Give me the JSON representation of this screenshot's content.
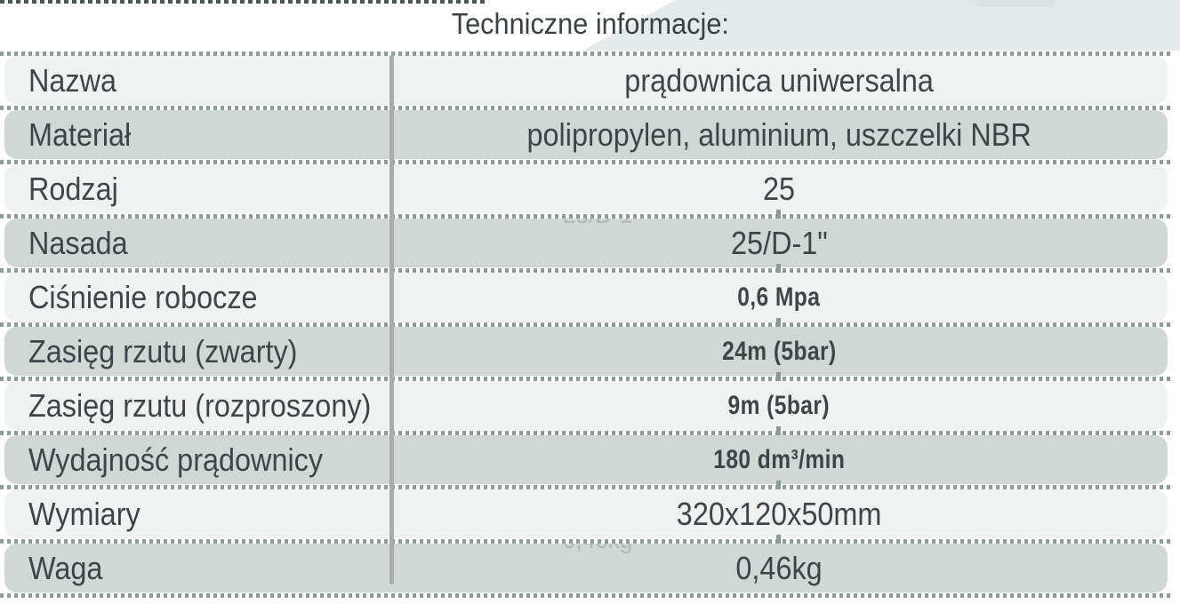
{
  "title": "Techniczne informacje:",
  "colors": {
    "row-light": "#f0f2f1",
    "row-dark": "#d1d7d4",
    "dots": "#8e9d99",
    "divider": "#a3afac",
    "text": "#3e4549",
    "title-shade": "#e4eae9",
    "tick": "#8b9a96"
  },
  "table": {
    "columns": [
      "label",
      "value"
    ],
    "rows": [
      {
        "label": "Nazwa",
        "value": "prądownica uniwersalna",
        "shade": "light",
        "value_style": "regular"
      },
      {
        "label": "Materiał",
        "value": "polipropylen, aluminium, uszczelki NBR",
        "shade": "dark",
        "value_style": "regular"
      },
      {
        "label": "Rodzaj",
        "value": "25",
        "shade": "light",
        "value_style": "regular"
      },
      {
        "label": "Nasada",
        "value": "25/D-1\"",
        "shade": "dark",
        "value_style": "regular",
        "ghost": "25/D-1\""
      },
      {
        "label": "Ciśnienie robocze",
        "value": "0,6 Mpa",
        "shade": "light",
        "value_style": "bold"
      },
      {
        "label": "Zasięg rzutu (zwarty)",
        "value": "24m (5bar)",
        "shade": "dark",
        "value_style": "bold"
      },
      {
        "label": "Zasięg rzutu (rozproszony)",
        "value": "9m (5bar)",
        "shade": "light",
        "value_style": "bold"
      },
      {
        "label": "Wydajność prądownicy",
        "value": "180 dm³/min",
        "shade": "dark",
        "value_style": "bold"
      },
      {
        "label": "Wymiary",
        "value": "320x120x50mm",
        "shade": "light",
        "value_style": "regular"
      },
      {
        "label": "Waga",
        "value": "0,46kg",
        "shade": "dark",
        "value_style": "regular",
        "ghost": "0,46kg"
      }
    ],
    "separator_ticks": [
      3,
      4,
      5,
      6,
      7,
      8,
      9
    ]
  }
}
